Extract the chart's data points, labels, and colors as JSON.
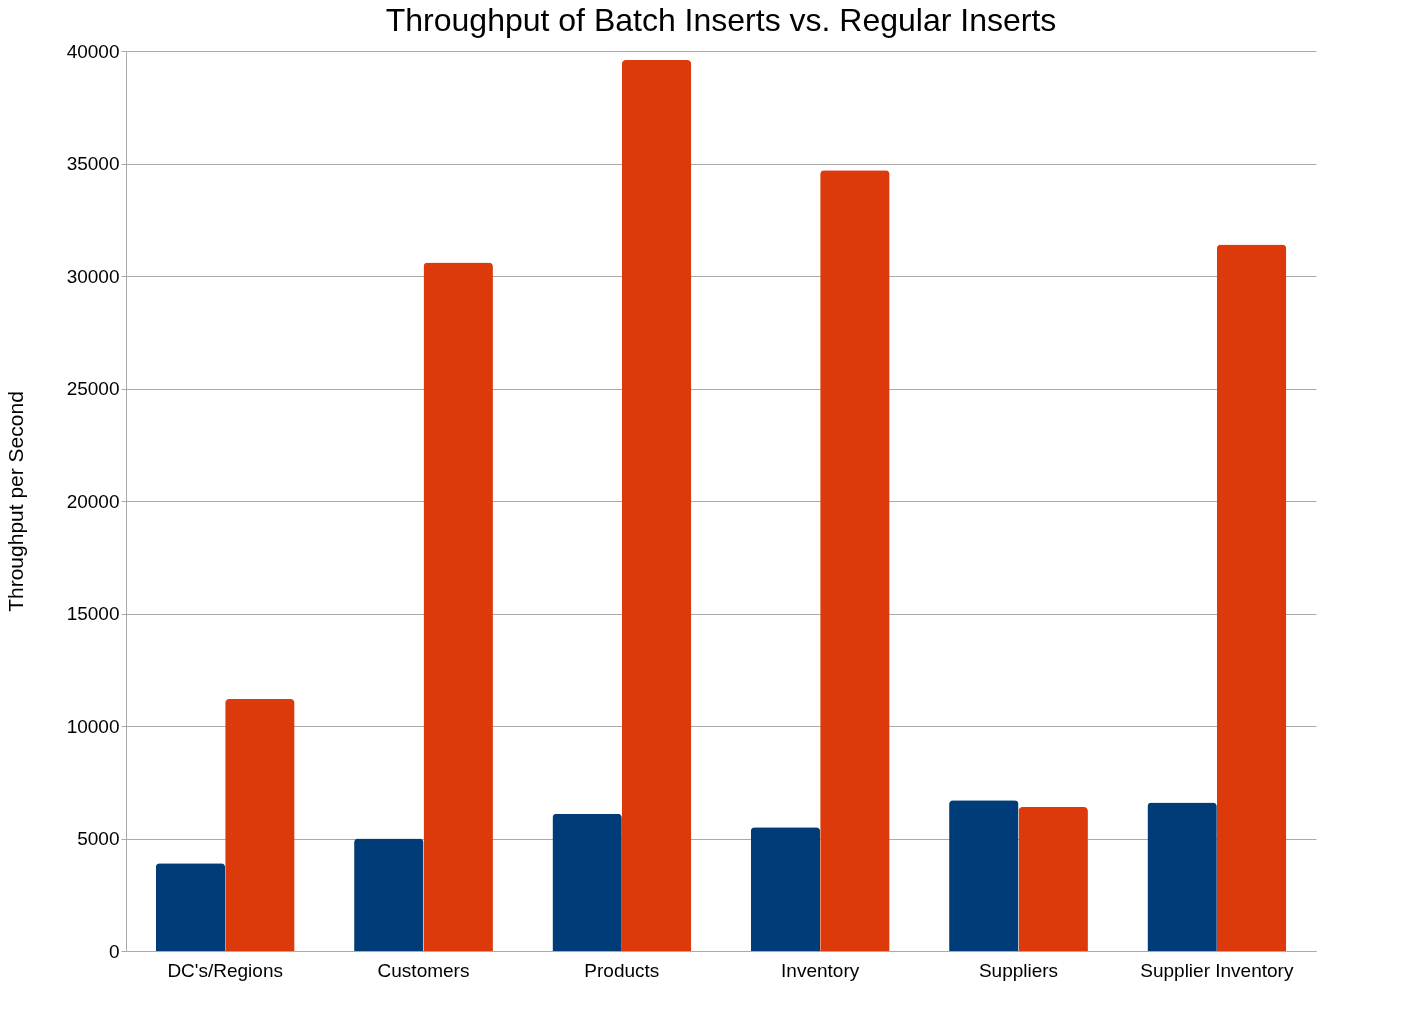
{
  "chart_data": {
    "type": "bar",
    "title": "Throughput of Batch Inserts vs. Regular Inserts",
    "ylabel": "Throughput per Second",
    "categories": [
      "DC's/Regions",
      "Customers",
      "Products",
      "Inventory",
      "Suppliers",
      "Supplier Inventory"
    ],
    "series": [
      {
        "color": "#003c78",
        "values": [
          3900,
          5000,
          6100,
          5500,
          6700,
          6600
        ]
      },
      {
        "color": "#dd3a0c",
        "values": [
          11200,
          30600,
          39600,
          34700,
          6400,
          31400
        ]
      }
    ],
    "ylim": [
      0,
      40000
    ],
    "yticks": [
      0,
      5000,
      10000,
      15000,
      20000,
      25000,
      30000,
      35000,
      40000
    ],
    "grid": "y"
  }
}
